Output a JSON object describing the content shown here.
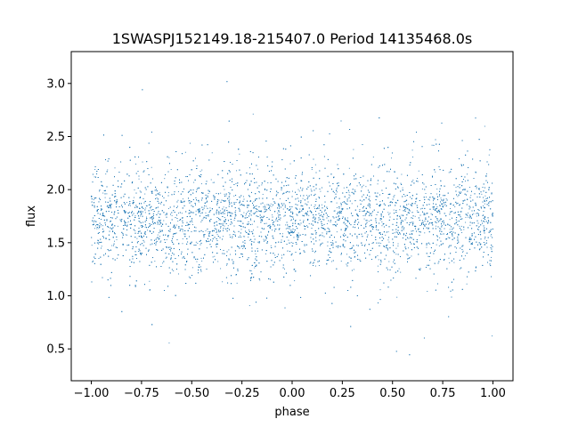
{
  "chart_data": {
    "type": "scatter",
    "title": "1SWASPJ152149.18-215407.0 Period 14135468.0s",
    "xlabel": "phase",
    "ylabel": "flux",
    "xlim": [
      -1.1,
      1.1
    ],
    "ylim": [
      0.2,
      3.3
    ],
    "xticks": [
      -1.0,
      -0.75,
      -0.5,
      -0.25,
      0.0,
      0.25,
      0.5,
      0.75,
      1.0
    ],
    "xtick_labels": [
      "−1.00",
      "−0.75",
      "−0.50",
      "−0.25",
      "0.00",
      "0.25",
      "0.50",
      "0.75",
      "1.00"
    ],
    "yticks": [
      0.5,
      1.0,
      1.5,
      2.0,
      2.5,
      3.0
    ],
    "ytick_labels": [
      "0.5",
      "1.0",
      "1.5",
      "2.0",
      "2.5",
      "3.0"
    ],
    "grid": false,
    "marker_color": "#1f77b4",
    "series": [
      {
        "x_range": [
          -1.0,
          1.0
        ],
        "typical_y": [
          1.3,
          2.1
        ],
        "y_min": 0.35,
        "y_max": 3.15,
        "median_y": 1.72
      }
    ]
  }
}
